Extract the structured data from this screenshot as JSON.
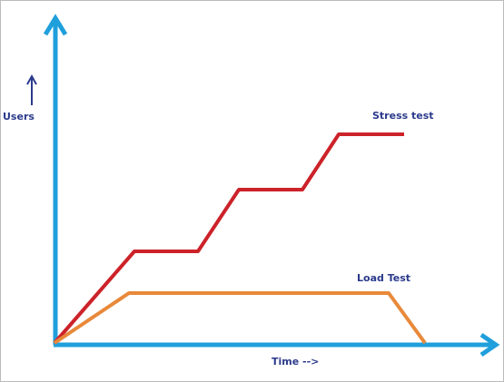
{
  "axis_labels": {
    "y": "Users",
    "x": "Time -->"
  },
  "curves": [
    {
      "label": "Stress test"
    },
    {
      "label": "Load Test"
    }
  ]
}
